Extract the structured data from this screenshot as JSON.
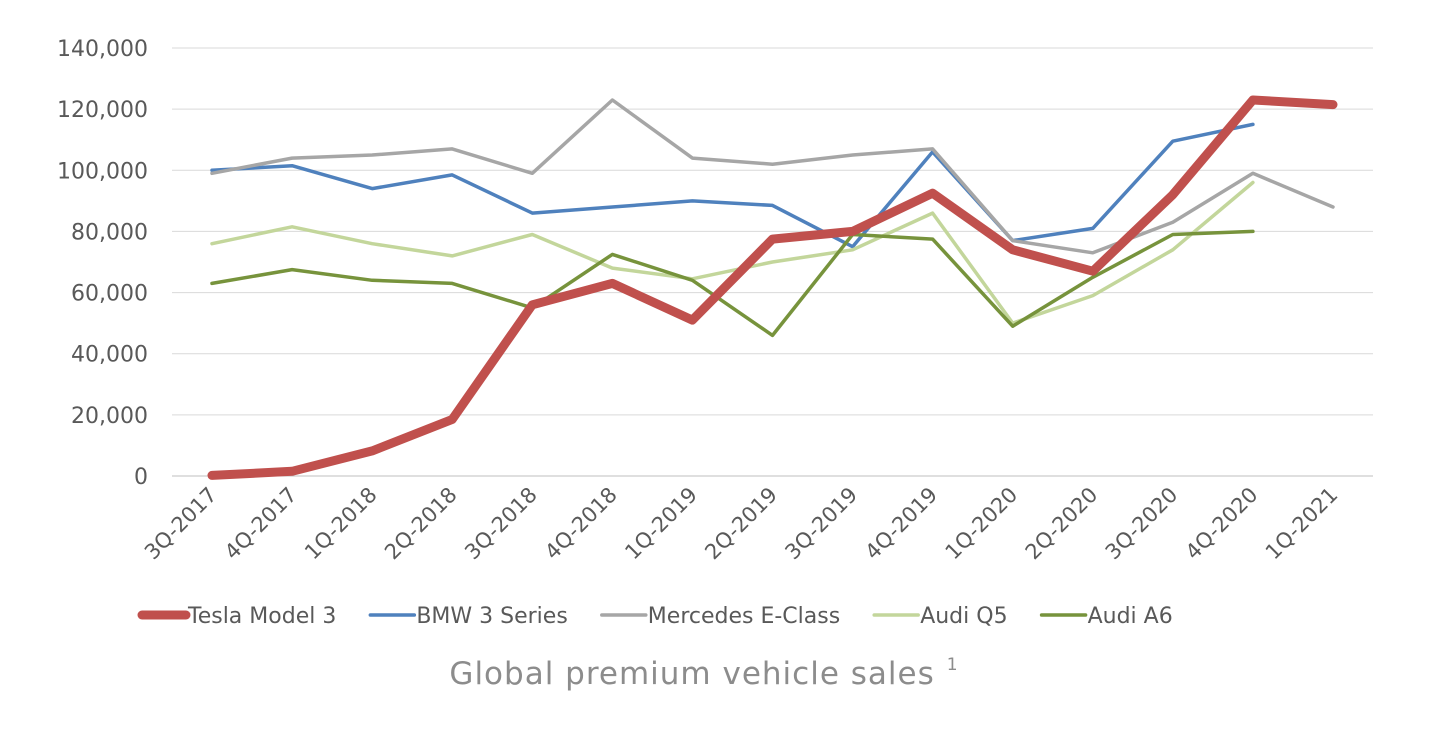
{
  "chart_data": {
    "type": "line",
    "title": "Global premium vehicle sales",
    "title_superscript": "1",
    "xlabel": "",
    "ylabel": "",
    "ylim": [
      0,
      140000
    ],
    "yticks": [
      0,
      20000,
      40000,
      60000,
      80000,
      100000,
      120000,
      140000
    ],
    "ytick_labels": [
      "0",
      "20,000",
      "40,000",
      "60,000",
      "80,000",
      "100,000",
      "120,000",
      "140,000"
    ],
    "grid": true,
    "legend_position": "bottom",
    "categories": [
      "3Q-2017",
      "4Q-2017",
      "1Q-2018",
      "2Q-2018",
      "3Q-2018",
      "4Q-2018",
      "1Q-2019",
      "2Q-2019",
      "3Q-2019",
      "4Q-2019",
      "1Q-2020",
      "2Q-2020",
      "3Q-2020",
      "4Q-2020",
      "1Q-2021"
    ],
    "series": [
      {
        "name": "Tesla Model 3",
        "color": "#c0504d",
        "emphasis": "thick",
        "values": [
          200,
          1550,
          8200,
          18500,
          56000,
          63000,
          51000,
          77500,
          80000,
          92500,
          74000,
          67000,
          92000,
          123000,
          121500
        ]
      },
      {
        "name": "BMW 3 Series",
        "color": "#4f81bd",
        "emphasis": "normal",
        "values": [
          100000,
          101500,
          94000,
          98500,
          86000,
          88000,
          90000,
          88500,
          75000,
          106000,
          77000,
          81000,
          109500,
          115000,
          null
        ]
      },
      {
        "name": "Mercedes E-Class",
        "color": "#a6a6a6",
        "emphasis": "normal",
        "values": [
          99000,
          104000,
          105000,
          107000,
          99000,
          123000,
          104000,
          102000,
          105000,
          107000,
          77000,
          73000,
          83000,
          99000,
          88000
        ]
      },
      {
        "name": "Audi Q5",
        "color": "#c3d69b",
        "emphasis": "normal",
        "values": [
          76000,
          81500,
          76000,
          72000,
          79000,
          68000,
          64500,
          70000,
          74000,
          86000,
          50000,
          59000,
          74000,
          96000,
          null
        ]
      },
      {
        "name": "Audi A6",
        "color": "#77933c",
        "emphasis": "normal",
        "values": [
          63000,
          67500,
          64000,
          63000,
          55000,
          72500,
          64000,
          46000,
          79000,
          77500,
          49000,
          65000,
          79000,
          80000,
          null
        ]
      }
    ]
  }
}
